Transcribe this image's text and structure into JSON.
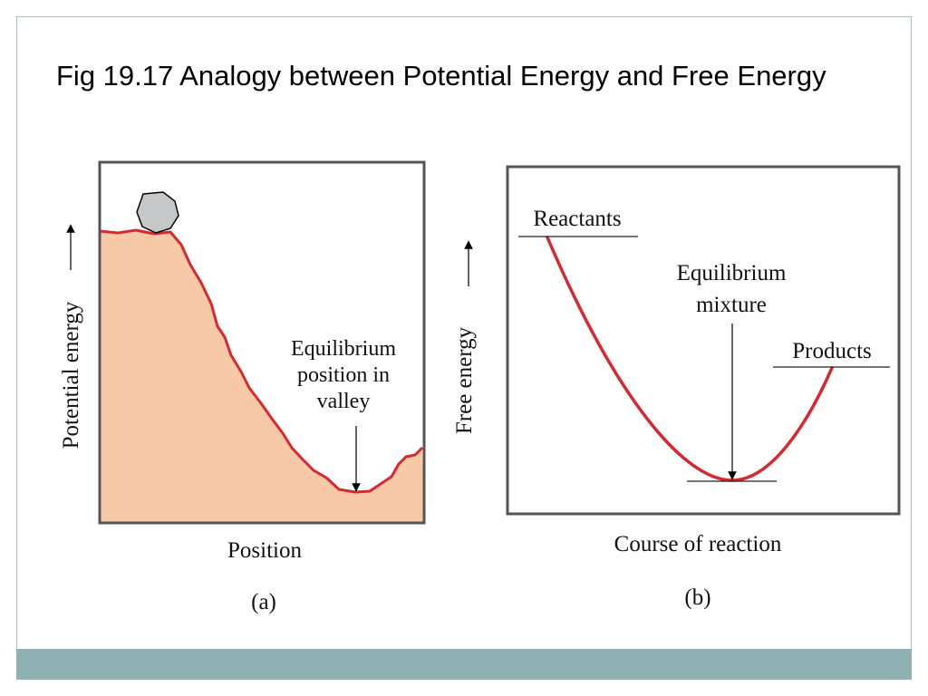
{
  "slide": {
    "title": "Fig 19.17 Analogy between Potential Energy and Free Energy",
    "footer_color": "#8fb1b3",
    "frame_color": "#a9c3c5"
  },
  "panel_a": {
    "y_axis_label": "Potential energy",
    "x_axis_label": "Position",
    "annotation_lines": [
      "Equilibrium",
      "position in",
      "valley"
    ],
    "caption": "(a)",
    "fill_color": "#f8c9a6",
    "curve_color": "#d8282f",
    "ball_color": "#c6c7c9"
  },
  "panel_b": {
    "y_axis_label": "Free energy",
    "x_axis_label": "Course of reaction",
    "reactants_label": "Reactants",
    "products_label": "Products",
    "equilibrium_lines": [
      "Equilibrium",
      "mixture"
    ],
    "caption": "(b)",
    "curve_color": "#d8282f"
  }
}
